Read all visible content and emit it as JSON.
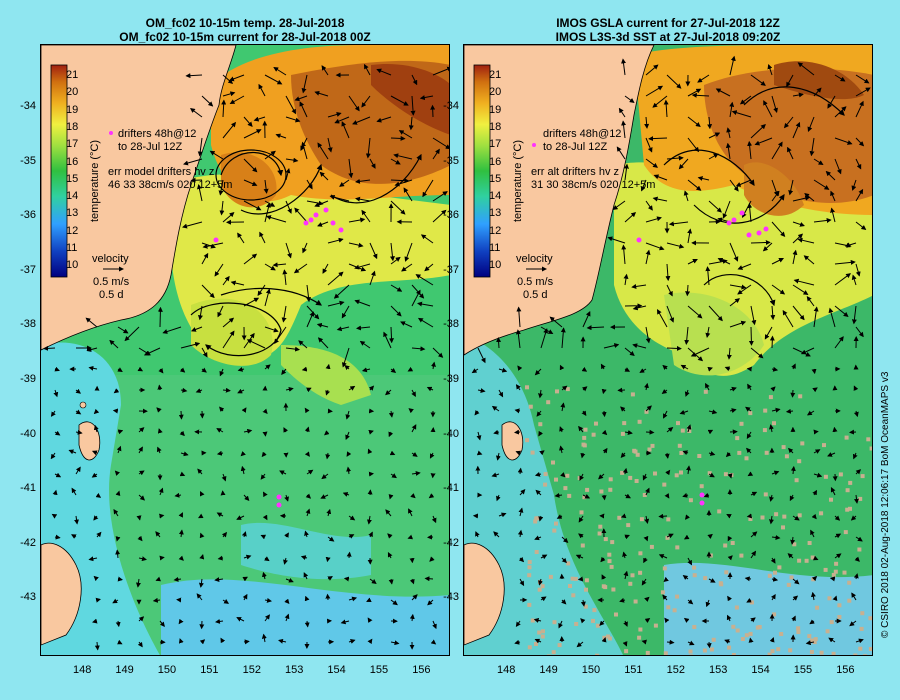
{
  "left_panel": {
    "title_line1": "OM_fc02 10-15m temp. 28-Jul-2018",
    "title_line2": "OM_fc02 10-15m current for 28-Jul-2018 00Z",
    "drifters_text": "drifters 48h@12\nto 28-Jul 12Z",
    "err_text": "err model drifters hv z\n46 33 38cm/s 020 12+5m"
  },
  "right_panel": {
    "title_line1": "IMOS GSLA current for 27-Jul-2018 12Z",
    "title_line2": "IMOS L3S-3d SST at 27-Jul-2018 09:20Z",
    "drifters_text": "drifters 48h@12\nto 28-Jul 12Z",
    "err_text": "err alt drifters hv z\n31 30 38cm/s 020 12+5m"
  },
  "colorbar": {
    "title": "temperature (°C)",
    "labels": [
      "21",
      "20",
      "19",
      "18",
      "17",
      "16",
      "15",
      "14",
      "13",
      "12",
      "11",
      "10"
    ]
  },
  "velocity_legend": {
    "title": "velocity",
    "speed": "0.5 m/s",
    "duration": "0.5 d"
  },
  "axes": {
    "y_labels": [
      "-34",
      "-35",
      "-36",
      "-37",
      "-38",
      "-39",
      "-40",
      "-41",
      "-42",
      "-43"
    ],
    "x_labels": [
      "148",
      "149",
      "150",
      "151",
      "152",
      "153",
      "154",
      "155",
      "156"
    ]
  },
  "credit": "© CSIRO 2018  02-Aug-2018 12:06:17 BoM OceanMAPS v3",
  "colors": {
    "background": "#8fe6f0",
    "land": "#f9c8a0",
    "drifter": "#ff33ff"
  }
}
